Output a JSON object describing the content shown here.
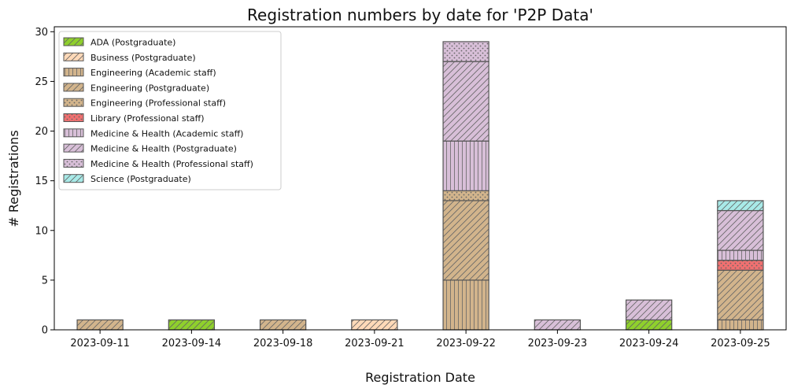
{
  "chart_data": {
    "type": "bar",
    "stacked": true,
    "title": "Registration numbers by date for 'P2P Data'",
    "xlabel": "Registration Date",
    "ylabel": "# Registrations",
    "categories": [
      "2023-09-11",
      "2023-09-14",
      "2023-09-18",
      "2023-09-21",
      "2023-09-22",
      "2023-09-23",
      "2023-09-24",
      "2023-09-25"
    ],
    "ylim": [
      0,
      30.5
    ],
    "yticks": [
      0,
      5,
      10,
      15,
      20,
      25,
      30
    ],
    "grid": false,
    "legend_position": "top-left",
    "series": [
      {
        "name": "ADA (Postgraduate)",
        "color": "#8fd02c",
        "hatch": "diag",
        "values": [
          0,
          1,
          0,
          0,
          0,
          0,
          1,
          0
        ]
      },
      {
        "name": "Business (Postgraduate)",
        "color": "#ffd9b8",
        "hatch": "diag",
        "values": [
          0,
          0,
          0,
          1,
          0,
          0,
          0,
          0
        ]
      },
      {
        "name": "Engineering (Academic staff)",
        "color": "#d2b48c",
        "hatch": "vertical",
        "values": [
          0,
          0,
          0,
          0,
          5,
          0,
          0,
          1
        ]
      },
      {
        "name": "Engineering (Postgraduate)",
        "color": "#d2b48c",
        "hatch": "diag",
        "values": [
          1,
          0,
          1,
          0,
          8,
          0,
          0,
          5
        ]
      },
      {
        "name": "Engineering (Professional staff)",
        "color": "#d2b48c",
        "hatch": "dots",
        "values": [
          0,
          0,
          0,
          0,
          1,
          0,
          0,
          0
        ]
      },
      {
        "name": "Library (Professional staff)",
        "color": "#f07070",
        "hatch": "dots",
        "values": [
          0,
          0,
          0,
          0,
          0,
          0,
          0,
          1
        ]
      },
      {
        "name": "Medicine & Health (Academic staff)",
        "color": "#d8bfd8",
        "hatch": "vertical",
        "values": [
          0,
          0,
          0,
          0,
          5,
          0,
          0,
          1
        ]
      },
      {
        "name": "Medicine & Health (Postgraduate)",
        "color": "#d8bfd8",
        "hatch": "diag",
        "values": [
          0,
          0,
          0,
          0,
          8,
          1,
          2,
          4
        ]
      },
      {
        "name": "Medicine & Health (Professional staff)",
        "color": "#d8bfd8",
        "hatch": "dots",
        "values": [
          0,
          0,
          0,
          0,
          2,
          0,
          0,
          0
        ]
      },
      {
        "name": "Science (Postgraduate)",
        "color": "#a8eae8",
        "hatch": "diag",
        "values": [
          0,
          0,
          0,
          0,
          0,
          0,
          0,
          1
        ]
      }
    ]
  }
}
